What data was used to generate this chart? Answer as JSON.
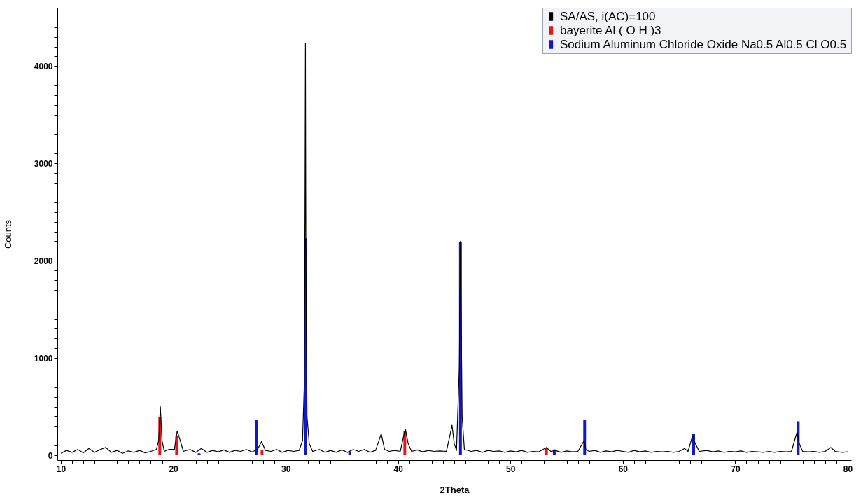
{
  "chart_data": {
    "type": "line",
    "xlabel": "2Theta",
    "ylabel": "Counts",
    "xlim": [
      10,
      80
    ],
    "ylim": [
      -50,
      4600
    ],
    "xticks": [
      10,
      {
        "value": 11,
        "label": null
      },
      {
        "value": 12,
        "label": null
      },
      {
        "value": 13,
        "label": null
      },
      {
        "value": 14,
        "label": null
      },
      {
        "value": 15,
        "label": null
      },
      {
        "value": 16,
        "label": null
      },
      {
        "value": 17,
        "label": null
      },
      {
        "value": 18,
        "label": null
      },
      {
        "value": 19,
        "label": null
      },
      20,
      {
        "value": 21,
        "label": null
      },
      {
        "value": 22,
        "label": null
      },
      {
        "value": 23,
        "label": null
      },
      {
        "value": 24,
        "label": null
      },
      {
        "value": 25,
        "label": null
      },
      {
        "value": 26,
        "label": null
      },
      {
        "value": 27,
        "label": null
      },
      {
        "value": 28,
        "label": null
      },
      {
        "value": 29,
        "label": null
      },
      30,
      {
        "value": 31,
        "label": null
      },
      {
        "value": 32,
        "label": null
      },
      {
        "value": 33,
        "label": null
      },
      {
        "value": 34,
        "label": null
      },
      {
        "value": 35,
        "label": null
      },
      {
        "value": 36,
        "label": null
      },
      {
        "value": 37,
        "label": null
      },
      {
        "value": 38,
        "label": null
      },
      {
        "value": 39,
        "label": null
      },
      40,
      {
        "value": 41,
        "label": null
      },
      {
        "value": 42,
        "label": null
      },
      {
        "value": 43,
        "label": null
      },
      {
        "value": 44,
        "label": null
      },
      {
        "value": 45,
        "label": null
      },
      {
        "value": 46,
        "label": null
      },
      {
        "value": 47,
        "label": null
      },
      {
        "value": 48,
        "label": null
      },
      {
        "value": 49,
        "label": null
      },
      50,
      {
        "value": 51,
        "label": null
      },
      {
        "value": 52,
        "label": null
      },
      {
        "value": 53,
        "label": null
      },
      {
        "value": 54,
        "label": null
      },
      {
        "value": 55,
        "label": null
      },
      {
        "value": 56,
        "label": null
      },
      {
        "value": 57,
        "label": null
      },
      {
        "value": 58,
        "label": null
      },
      {
        "value": 59,
        "label": null
      },
      60,
      {
        "value": 61,
        "label": null
      },
      {
        "value": 62,
        "label": null
      },
      {
        "value": 63,
        "label": null
      },
      {
        "value": 64,
        "label": null
      },
      {
        "value": 65,
        "label": null
      },
      {
        "value": 66,
        "label": null
      },
      {
        "value": 67,
        "label": null
      },
      {
        "value": 68,
        "label": null
      },
      {
        "value": 69,
        "label": null
      },
      70,
      {
        "value": 71,
        "label": null
      },
      {
        "value": 72,
        "label": null
      },
      {
        "value": 73,
        "label": null
      },
      {
        "value": 74,
        "label": null
      },
      {
        "value": 75,
        "label": null
      },
      {
        "value": 76,
        "label": null
      },
      {
        "value": 77,
        "label": null
      },
      {
        "value": 78,
        "label": null
      },
      {
        "value": 79,
        "label": null
      },
      80
    ],
    "yticks": [
      0,
      {
        "value": 100,
        "label": null
      },
      {
        "value": 200,
        "label": null
      },
      {
        "value": 300,
        "label": null
      },
      {
        "value": 400,
        "label": null
      },
      {
        "value": 500,
        "label": null
      },
      {
        "value": 600,
        "label": null
      },
      {
        "value": 700,
        "label": null
      },
      {
        "value": 800,
        "label": null
      },
      {
        "value": 900,
        "label": null
      },
      1000,
      {
        "value": 1100,
        "label": null
      },
      {
        "value": 1200,
        "label": null
      },
      {
        "value": 1300,
        "label": null
      },
      {
        "value": 1400,
        "label": null
      },
      {
        "value": 1500,
        "label": null
      },
      {
        "value": 1600,
        "label": null
      },
      {
        "value": 1700,
        "label": null
      },
      {
        "value": 1800,
        "label": null
      },
      {
        "value": 1900,
        "label": null
      },
      2000,
      {
        "value": 2100,
        "label": null
      },
      {
        "value": 2200,
        "label": null
      },
      {
        "value": 2300,
        "label": null
      },
      {
        "value": 2400,
        "label": null
      },
      {
        "value": 2500,
        "label": null
      },
      {
        "value": 2600,
        "label": null
      },
      {
        "value": 2700,
        "label": null
      },
      {
        "value": 2800,
        "label": null
      },
      {
        "value": 2900,
        "label": null
      },
      3000,
      {
        "value": 3100,
        "label": null
      },
      {
        "value": 3200,
        "label": null
      },
      {
        "value": 3300,
        "label": null
      },
      {
        "value": 3400,
        "label": null
      },
      {
        "value": 3500,
        "label": null
      },
      {
        "value": 3600,
        "label": null
      },
      {
        "value": 3700,
        "label": null
      },
      {
        "value": 3800,
        "label": null
      },
      {
        "value": 3900,
        "label": null
      },
      4000,
      {
        "value": 4100,
        "label": null
      },
      {
        "value": 4200,
        "label": null
      },
      {
        "value": 4300,
        "label": null
      },
      {
        "value": 4400,
        "label": null
      },
      {
        "value": 4500,
        "label": null
      },
      {
        "value": 4600,
        "label": null
      }
    ],
    "grid": false,
    "legend": "top right",
    "series": [
      {
        "name": "SA/AS, i(AC)=100",
        "color": "#000000",
        "x": [
          10,
          10.5,
          11,
          11.5,
          12,
          12.5,
          13,
          13.5,
          14,
          14.5,
          15,
          15.5,
          16,
          16.5,
          17,
          17.5,
          18,
          18.5,
          18.7,
          18.85,
          19.0,
          19.2,
          19.6,
          20.1,
          20.35,
          20.6,
          20.9,
          21.5,
          22,
          22.5,
          23,
          23.5,
          24,
          24.5,
          25,
          25.5,
          26,
          26.5,
          27,
          27.5,
          27.85,
          28.2,
          28.7,
          29.2,
          29.7,
          30.2,
          30.7,
          31.2,
          31.5,
          31.65,
          31.72,
          31.76,
          31.8,
          31.9,
          32.1,
          32.4,
          33,
          33.5,
          34,
          34.5,
          35,
          35.5,
          36,
          36.5,
          37,
          37.5,
          38,
          38.5,
          38.8,
          39.2,
          39.7,
          40.2,
          40.5,
          40.65,
          40.9,
          41.2,
          41.7,
          42.2,
          42.7,
          43.2,
          43.7,
          44.3,
          44.7,
          44.8,
          45.0,
          45.2,
          45.45,
          45.55,
          45.7,
          45.9,
          46.5,
          47,
          47.5,
          48,
          48.5,
          49,
          49.5,
          50,
          50.5,
          51,
          51.5,
          52,
          52.5,
          53.2,
          53.6,
          54,
          54.5,
          55,
          55.5,
          56,
          56.55,
          56.7,
          57,
          57.5,
          58,
          58.5,
          59,
          59.5,
          60,
          60.5,
          61,
          61.5,
          62,
          62.5,
          63,
          63.5,
          64,
          64.5,
          65,
          65.5,
          65.8,
          66.2,
          66.45,
          66.8,
          67.5,
          68,
          68.5,
          69,
          69.5,
          70,
          70.5,
          71,
          71.5,
          72,
          72.5,
          73,
          73.5,
          74,
          74.5,
          75,
          75.5,
          75.7,
          76,
          76.5,
          77,
          77.5,
          78,
          78.5,
          78.9,
          79.5,
          80
        ],
        "values": [
          20,
          50,
          30,
          60,
          25,
          70,
          30,
          60,
          80,
          30,
          50,
          20,
          45,
          30,
          50,
          25,
          40,
          60,
          150,
          500,
          150,
          40,
          60,
          60,
          250,
          160,
          40,
          60,
          30,
          70,
          30,
          50,
          35,
          55,
          30,
          50,
          40,
          60,
          35,
          60,
          140,
          50,
          40,
          60,
          30,
          50,
          40,
          50,
          150,
          700,
          2500,
          4230,
          2000,
          400,
          120,
          40,
          60,
          30,
          50,
          30,
          55,
          30,
          60,
          40,
          60,
          30,
          50,
          220,
          60,
          40,
          50,
          40,
          200,
          270,
          120,
          40,
          55,
          35,
          50,
          40,
          45,
          40,
          250,
          310,
          120,
          50,
          900,
          2200,
          400,
          60,
          40,
          50,
          30,
          50,
          40,
          45,
          30,
          45,
          35,
          50,
          30,
          40,
          35,
          80,
          40,
          50,
          30,
          45,
          35,
          40,
          150,
          60,
          40,
          50,
          30,
          45,
          35,
          50,
          40,
          30,
          50,
          35,
          45,
          30,
          40,
          35,
          40,
          30,
          40,
          70,
          40,
          200,
          120,
          40,
          50,
          35,
          45,
          30,
          40,
          35,
          45,
          30,
          40,
          35,
          30,
          40,
          30,
          40,
          35,
          40,
          240,
          120,
          40,
          35,
          40,
          30,
          40,
          80,
          40,
          30,
          35
        ]
      },
      {
        "name": "bayerite Al ( O H )3",
        "color": "#e8141b",
        "type": "bar",
        "x": [
          18.8,
          20.3,
          27.9,
          40.6,
          53.2
        ],
        "values": [
          390,
          200,
          50,
          250,
          80
        ]
      },
      {
        "name": "Sodium Aluminum Chloride Oxide Na0.5 Al0.5 Cl O0.5",
        "color": "#1218c8",
        "type": "bar",
        "x": [
          22.3,
          27.4,
          31.75,
          35.7,
          45.55,
          53.9,
          56.6,
          66.3,
          75.6
        ],
        "values": [
          20,
          360,
          2230,
          40,
          2190,
          60,
          360,
          220,
          350
        ]
      }
    ]
  }
}
